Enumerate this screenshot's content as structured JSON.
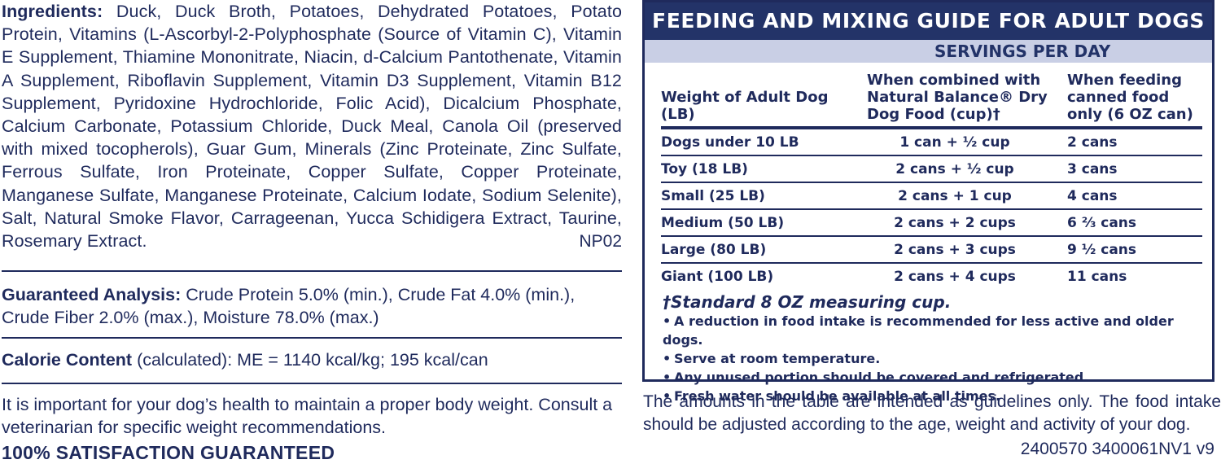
{
  "ingredients": {
    "label": "Ingredients:",
    "text": "Duck, Duck Broth, Potatoes, Dehydrated Potatoes, Potato Protein, Vitamins (L-Ascorbyl-2-Polyphosphate (Source of Vitamin C), Vitamin E Supplement, Thiamine Mononitrate, Niacin, d-Calcium Pantothenate, Vitamin A Supplement, Riboflavin Supplement, Vitamin D3 Supplement, Vitamin B12 Supplement, Pyridoxine Hydrochloride, Folic Acid), Dicalcium Phosphate, Calcium Carbonate, Potassium Chloride, Duck Meal, Canola Oil (preserved with mixed tocopherols), Guar Gum, Minerals (Zinc Proteinate, Zinc Sulfate, Ferrous Sulfate, Iron Proteinate, Copper Sulfate, Copper Proteinate, Manganese Sulfate, Manganese Proteinate, Calcium Iodate, Sodium Selenite), Salt, Natural Smoke Flavor, Carrageenan, Yucca Schidigera Extract, Taurine, Rosemary Extract.",
    "code": "NP02"
  },
  "analysis": {
    "label": "Guaranteed Analysis:",
    "text": "Crude Protein 5.0% (min.), Crude Fat 4.0% (min.), Crude Fiber 2.0% (max.), Moisture 78.0% (max.)"
  },
  "calorie": {
    "label": "Calorie Content",
    "text": "(calculated): ME = 1140 kcal/kg; 195 kcal/can"
  },
  "weight_note": "It is important for your dog’s health to maintain a proper body weight. Consult a veterinarian for specific weight recommendations.",
  "satisfaction": "100% SATISFACTION GUARANTEED",
  "guide": {
    "title": "FEEDING AND MIXING GUIDE FOR ADULT DOGS",
    "servings_header": "SERVINGS PER DAY",
    "col1": "Weight of Adult Dog (LB)",
    "col2": "When combined with Natural Balance® Dry Dog Food (cup)†",
    "col3": "When feeding canned food only (6 OZ can)",
    "rows": [
      {
        "weight": "Dogs under 10 LB",
        "combined": "1 can + ½ cup",
        "canned": "2 cans"
      },
      {
        "weight": "Toy (18 LB)",
        "combined": "2 cans + ½ cup",
        "canned": "3 cans"
      },
      {
        "weight": "Small (25 LB)",
        "combined": "2 cans + 1 cup",
        "canned": "4 cans"
      },
      {
        "weight": "Medium (50 LB)",
        "combined": "2 cans + 2 cups",
        "canned": "6 ⅔ cans"
      },
      {
        "weight": "Large (80 LB)",
        "combined": "2 cans + 3 cups",
        "canned": "9 ½ cans"
      },
      {
        "weight": "Giant (100 LB)",
        "combined": "2 cans + 4 cups",
        "canned": "11 cans"
      }
    ],
    "footnote": "†Standard 8 OZ measuring cup.",
    "bullets": [
      "A reduction in food intake is recommended for less active and older dogs.",
      "Serve at room temperature.",
      "Any unused portion should be covered and refrigerated.",
      "Fresh water should be available at all times."
    ]
  },
  "guideline_note": "The amounts in the table are intended as guidelines only. The food intake should be adjusted according to the age, weight and activity of your dog.",
  "product_code": "2400570 3400061NV1 v9"
}
